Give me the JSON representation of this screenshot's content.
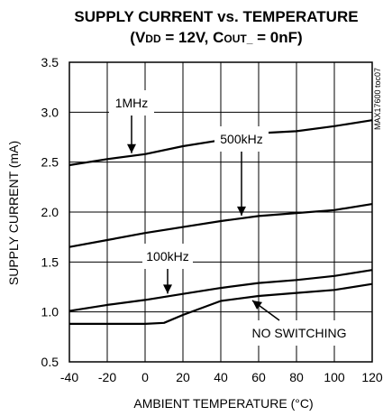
{
  "chart_data": {
    "type": "line",
    "title": "SUPPLY CURRENT vs. TEMPERATURE",
    "subtitle_parts": {
      "open": "(V",
      "dd_sub": "DD",
      "mid": " = 12V, C",
      "out_sub": "OUT_",
      "close": " = 0nF)"
    },
    "xlabel": "AMBIENT TEMPERATURE (°C)",
    "ylabel": "SUPPLY CURRENT (mA)",
    "side_label": "MAX17600 toc07",
    "xlim": [
      -40,
      120
    ],
    "ylim": [
      0.5,
      3.5
    ],
    "grid": true,
    "x_ticks": [
      -40,
      -20,
      0,
      20,
      40,
      60,
      80,
      100,
      120
    ],
    "x_tick_labels": [
      "-40",
      "-20",
      "0",
      "20",
      "40",
      "60",
      "80",
      "100",
      "120"
    ],
    "y_ticks": [
      0.5,
      1.0,
      1.5,
      2.0,
      2.5,
      3.0,
      3.5
    ],
    "y_tick_labels": [
      "0.5",
      "1.0",
      "1.5",
      "2.0",
      "2.5",
      "3.0",
      "3.5"
    ],
    "series": [
      {
        "name": "1MHz",
        "x": [
          -40,
          -20,
          0,
          20,
          40,
          60,
          80,
          100,
          120
        ],
        "values": [
          2.47,
          2.53,
          2.58,
          2.66,
          2.72,
          2.79,
          2.81,
          2.86,
          2.92
        ]
      },
      {
        "name": "500kHz",
        "x": [
          -40,
          -20,
          0,
          20,
          40,
          60,
          80,
          100,
          120
        ],
        "values": [
          1.65,
          1.72,
          1.79,
          1.85,
          1.91,
          1.96,
          1.99,
          2.02,
          2.08
        ]
      },
      {
        "name": "100kHz",
        "x": [
          -40,
          -20,
          0,
          20,
          40,
          60,
          80,
          100,
          120
        ],
        "values": [
          1.01,
          1.07,
          1.12,
          1.18,
          1.24,
          1.29,
          1.32,
          1.36,
          1.42
        ]
      },
      {
        "name": "NO SWITCHING",
        "x": [
          -40,
          -20,
          0,
          10,
          20,
          40,
          60,
          80,
          100,
          120
        ],
        "values": [
          0.88,
          0.88,
          0.88,
          0.89,
          0.97,
          1.11,
          1.16,
          1.19,
          1.22,
          1.28
        ]
      }
    ],
    "annotations": [
      {
        "text": "1MHz",
        "series": "1MHz"
      },
      {
        "text": "500kHz",
        "series": "500kHz"
      },
      {
        "text": "100kHz",
        "series": "100kHz"
      },
      {
        "text": "NO SWITCHING",
        "series": "NO SWITCHING"
      }
    ]
  }
}
